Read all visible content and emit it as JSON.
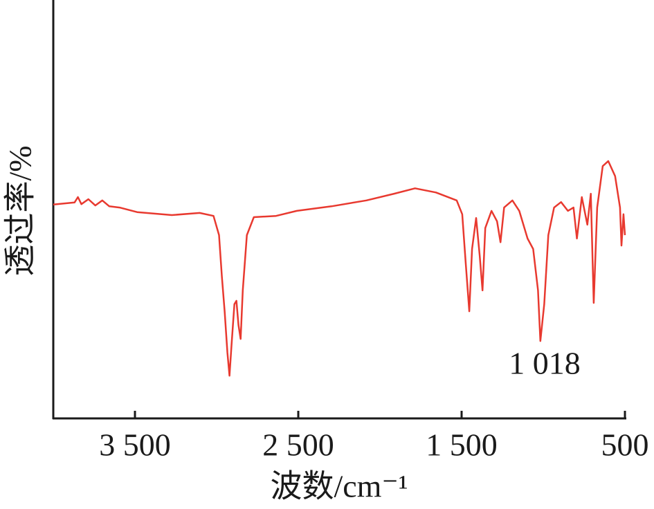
{
  "chart_data": {
    "type": "line",
    "xlabel": "波数/cm⁻¹",
    "ylabel": "透过率/%",
    "annotations": [
      "1 018"
    ],
    "color": "#e8392f",
    "xlim": [
      4000,
      500
    ],
    "ylim": [
      0,
      100
    ],
    "xticks": [
      {
        "value": 3500,
        "label": "3 500"
      },
      {
        "value": 2500,
        "label": "2 500"
      },
      {
        "value": 1500,
        "label": "1 500"
      },
      500
    ],
    "x": [
      4000,
      3870,
      3849,
      3828,
      3785,
      3743,
      3700,
      3657,
      3594,
      3487,
      3274,
      3104,
      3019,
      2985,
      2968,
      2951,
      2934,
      2921,
      2909,
      2891,
      2879,
      2866,
      2853,
      2840,
      2815,
      2772,
      2636,
      2509,
      2296,
      2083,
      1913,
      1785,
      1657,
      1530,
      1496,
      1475,
      1453,
      1436,
      1411,
      1389,
      1372,
      1355,
      1317,
      1283,
      1262,
      1240,
      1189,
      1147,
      1096,
      1062,
      1032,
      1018,
      994,
      969,
      934,
      891,
      849,
      815,
      794,
      764,
      730,
      709,
      691,
      670,
      636,
      602,
      560,
      530,
      521,
      509,
      500
    ],
    "values": [
      51.1,
      51.6,
      52.9,
      51.2,
      52.4,
      50.9,
      52.1,
      50.7,
      50.4,
      49.3,
      48.6,
      49.1,
      48.4,
      43.8,
      33.9,
      25.6,
      15.7,
      10.2,
      17.4,
      27.3,
      28.1,
      22.3,
      19.0,
      30.6,
      43.8,
      48.1,
      48.4,
      49.6,
      50.7,
      52.1,
      53.7,
      55.0,
      54.0,
      52.1,
      48.8,
      37.2,
      25.6,
      40.5,
      47.9,
      38.8,
      30.6,
      45.5,
      49.6,
      47.1,
      42.1,
      50.4,
      52.1,
      49.6,
      43.0,
      40.5,
      30.6,
      18.5,
      27.3,
      43.8,
      50.4,
      51.7,
      49.6,
      50.4,
      43.0,
      52.9,
      46.3,
      53.7,
      27.6,
      50.4,
      60.3,
      61.5,
      57.9,
      50.4,
      41.3,
      48.8,
      43.8
    ]
  }
}
